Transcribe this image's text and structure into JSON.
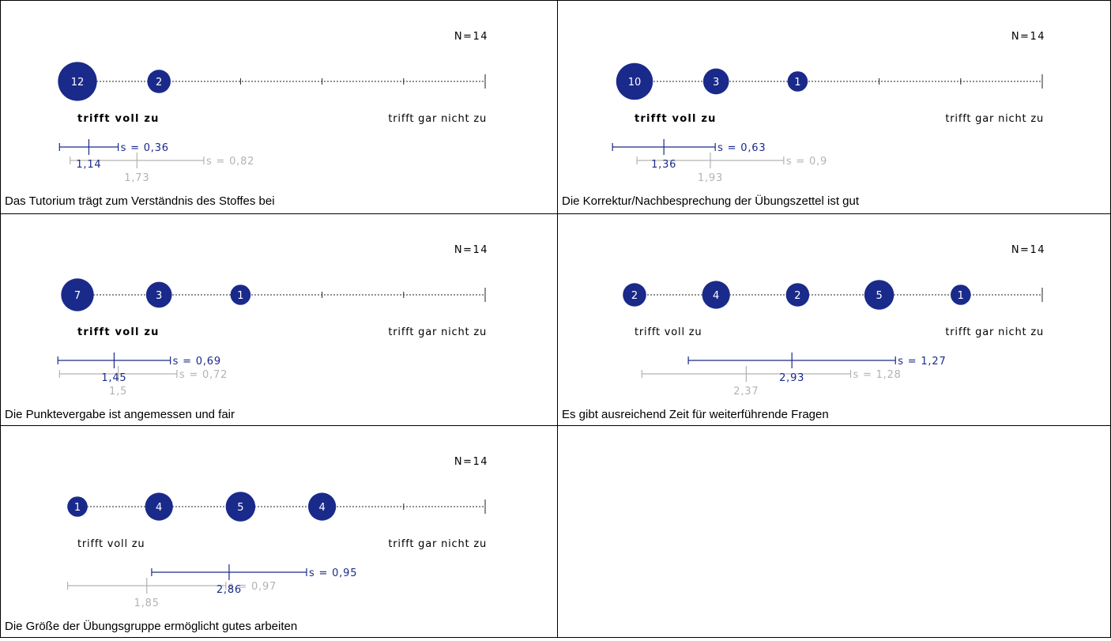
{
  "colors": {
    "primary": "#1a2a8a",
    "secondary": "#b3b3b3",
    "border": "#000000",
    "text": "#000000"
  },
  "scale": {
    "points": [
      1,
      2,
      3,
      4,
      5,
      6
    ],
    "left_label": "trifft voll zu",
    "right_label": "trifft gar nicht zu"
  },
  "chart_data": [
    {
      "type": "bubble-scale",
      "question": "Das Tutorium trägt zum Verständnis des Stoffes bei",
      "n_label": "N=14",
      "counts": [
        12,
        2,
        0,
        0,
        0,
        0
      ],
      "left_bold": true,
      "primary": {
        "mean": 1.14,
        "sd": 0.36,
        "mean_label": "1,14",
        "sd_label": "s = 0,36"
      },
      "secondary": {
        "mean": 1.73,
        "sd": 0.82,
        "mean_label": "1,73",
        "sd_label": "s = 0,82"
      }
    },
    {
      "type": "bubble-scale",
      "question": "Die Korrektur/Nachbesprechung der Übungszettel ist gut",
      "n_label": "N=14",
      "counts": [
        10,
        3,
        1,
        0,
        0,
        0
      ],
      "left_bold": true,
      "primary": {
        "mean": 1.36,
        "sd": 0.63,
        "mean_label": "1,36",
        "sd_label": "s = 0,63"
      },
      "secondary": {
        "mean": 1.93,
        "sd": 0.9,
        "mean_label": "1,93",
        "sd_label": "s = 0,9"
      }
    },
    {
      "type": "bubble-scale",
      "question": "Die Punktevergabe ist angemessen und fair",
      "n_label": "N=14",
      "counts": [
        7,
        3,
        1,
        0,
        0,
        0
      ],
      "left_bold": true,
      "primary": {
        "mean": 1.45,
        "sd": 0.69,
        "mean_label": "1,45",
        "sd_label": "s = 0,69"
      },
      "secondary": {
        "mean": 1.5,
        "sd": 0.72,
        "mean_label": "1,5",
        "sd_label": "s = 0,72"
      }
    },
    {
      "type": "bubble-scale",
      "question": "Es gibt ausreichend Zeit für weiterführende Fragen",
      "n_label": "N=14",
      "counts": [
        2,
        4,
        2,
        5,
        1,
        0
      ],
      "left_bold": false,
      "primary": {
        "mean": 2.93,
        "sd": 1.27,
        "mean_label": "2,93",
        "sd_label": "s = 1,27"
      },
      "secondary": {
        "mean": 2.37,
        "sd": 1.28,
        "mean_label": "2,37",
        "sd_label": "s = 1,28"
      }
    },
    {
      "type": "bubble-scale",
      "question": "Die Größe der Übungsgruppe ermöglicht gutes arbeiten",
      "n_label": "N=14",
      "counts": [
        1,
        4,
        5,
        4,
        0,
        0
      ],
      "left_bold": false,
      "primary": {
        "mean": 2.86,
        "sd": 0.95,
        "mean_label": "2,86",
        "sd_label": "s = 0,95"
      },
      "secondary": {
        "mean": 1.85,
        "sd": 0.97,
        "mean_label": "1,85",
        "sd_label": "s = 0,97"
      }
    }
  ]
}
